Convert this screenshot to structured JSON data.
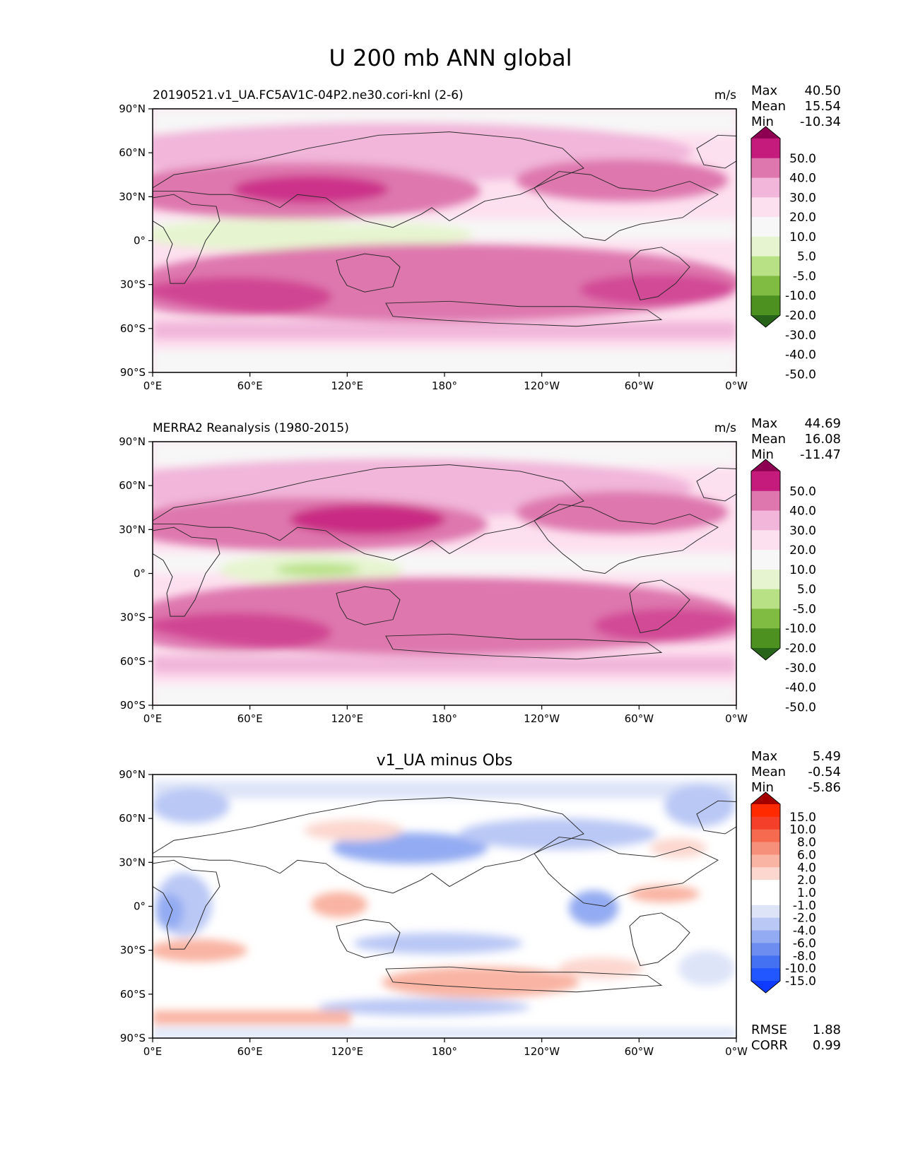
{
  "figure_title": "U 200 mb ANN global",
  "colors": {
    "base_cbar": [
      "#276419",
      "#4d9221",
      "#7fbc41",
      "#b8e186",
      "#e6f5d0",
      "#f7f7f7",
      "#fde0ef",
      "#f1b6da",
      "#de77ae",
      "#c51b7d",
      "#8e0152"
    ],
    "diff_cbar": [
      "#0f3bff",
      "#2257ff",
      "#4470f2",
      "#6d8ef0",
      "#93abf2",
      "#bac8f5",
      "#dde4f8",
      "#ffffff",
      "#ffffff",
      "#fcd7cf",
      "#f9b4a3",
      "#f7907a",
      "#f66a4f",
      "#f4402a",
      "#ff2a00",
      "#a50000"
    ]
  },
  "chart_data": [
    {
      "type": "contour-map",
      "title_left": "20190521.v1_UA.FC5AV1C-04P2.ne30.cori-knl (2-6)",
      "units": "m/s",
      "stats": [
        {
          "label": "Max",
          "value": "40.50"
        },
        {
          "label": "Mean",
          "value": "15.54"
        },
        {
          "label": "Min",
          "value": "-10.34"
        }
      ],
      "xticks": [
        "0°E",
        "60°E",
        "120°E",
        "180°",
        "120°W",
        "60°W",
        "0°W"
      ],
      "yticks": [
        "90°N",
        "60°N",
        "30°N",
        "0°",
        "30°S",
        "60°S",
        "90°S"
      ],
      "colorbar_levels": [
        "50.0",
        "40.0",
        "30.0",
        "20.0",
        "10.0",
        "5.0",
        "-5.0",
        "-10.0",
        "-20.0",
        "-30.0",
        "-40.0",
        "-50.0"
      ]
    },
    {
      "type": "contour-map",
      "title_left": "MERRA2 Reanalysis (1980-2015)",
      "units": "m/s",
      "stats": [
        {
          "label": "Max",
          "value": "44.69"
        },
        {
          "label": "Mean",
          "value": "16.08"
        },
        {
          "label": "Min",
          "value": "-11.47"
        }
      ],
      "xticks": [
        "0°E",
        "60°E",
        "120°E",
        "180°",
        "120°W",
        "60°W",
        "0°W"
      ],
      "yticks": [
        "90°N",
        "60°N",
        "30°N",
        "0°",
        "30°S",
        "60°S",
        "90°S"
      ],
      "colorbar_levels": [
        "50.0",
        "40.0",
        "30.0",
        "20.0",
        "10.0",
        "5.0",
        "-5.0",
        "-10.0",
        "-20.0",
        "-30.0",
        "-40.0",
        "-50.0"
      ]
    },
    {
      "type": "contour-map",
      "title_center": "v1_UA minus Obs",
      "stats": [
        {
          "label": "Max",
          "value": "5.49"
        },
        {
          "label": "Mean",
          "value": "-0.54"
        },
        {
          "label": "Min",
          "value": "-5.86"
        }
      ],
      "metrics": [
        {
          "label": "RMSE",
          "value": "1.88"
        },
        {
          "label": "CORR",
          "value": "0.99"
        }
      ],
      "xticks": [
        "0°E",
        "60°E",
        "120°E",
        "180°",
        "120°W",
        "60°W",
        "0°W"
      ],
      "yticks": [
        "90°N",
        "60°N",
        "30°N",
        "0°",
        "30°S",
        "60°S",
        "90°S"
      ],
      "colorbar_levels": [
        "15.0",
        "10.0",
        "8.0",
        "6.0",
        "4.0",
        "2.0",
        "1.0",
        "-1.0",
        "-2.0",
        "-4.0",
        "-6.0",
        "-8.0",
        "-10.0",
        "-15.0"
      ]
    }
  ]
}
